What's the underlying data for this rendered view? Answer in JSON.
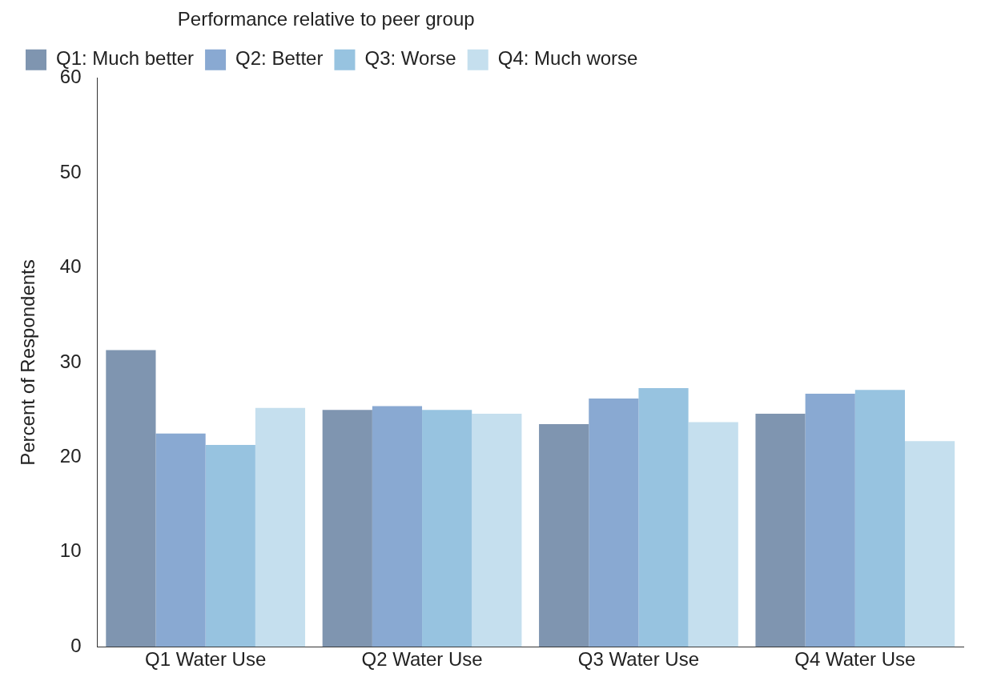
{
  "chart_data": {
    "type": "bar",
    "ylabel": "Percent of Respondents",
    "legend_title": "Performance relative to peer group",
    "categories": [
      "Q1 Water Use",
      "Q2 Water Use",
      "Q3 Water Use",
      "Q4 Water Use"
    ],
    "series": [
      {
        "name": "Q1: Much better",
        "color": "#7f95b0",
        "values": [
          31.3,
          25.0,
          23.5,
          24.6
        ]
      },
      {
        "name": "Q2: Better",
        "color": "#89a9d2",
        "values": [
          22.5,
          25.4,
          26.2,
          26.7
        ]
      },
      {
        "name": "Q3: Worse",
        "color": "#97c3e0",
        "values": [
          21.3,
          25.0,
          27.3,
          27.1
        ]
      },
      {
        "name": "Q4: Much worse",
        "color": "#c5dfee",
        "values": [
          25.2,
          24.6,
          23.7,
          21.7
        ]
      }
    ],
    "ylim": [
      0,
      60
    ],
    "yticks": [
      0,
      10,
      20,
      30,
      40,
      50,
      60
    ],
    "grid": false,
    "legend": "top left"
  }
}
